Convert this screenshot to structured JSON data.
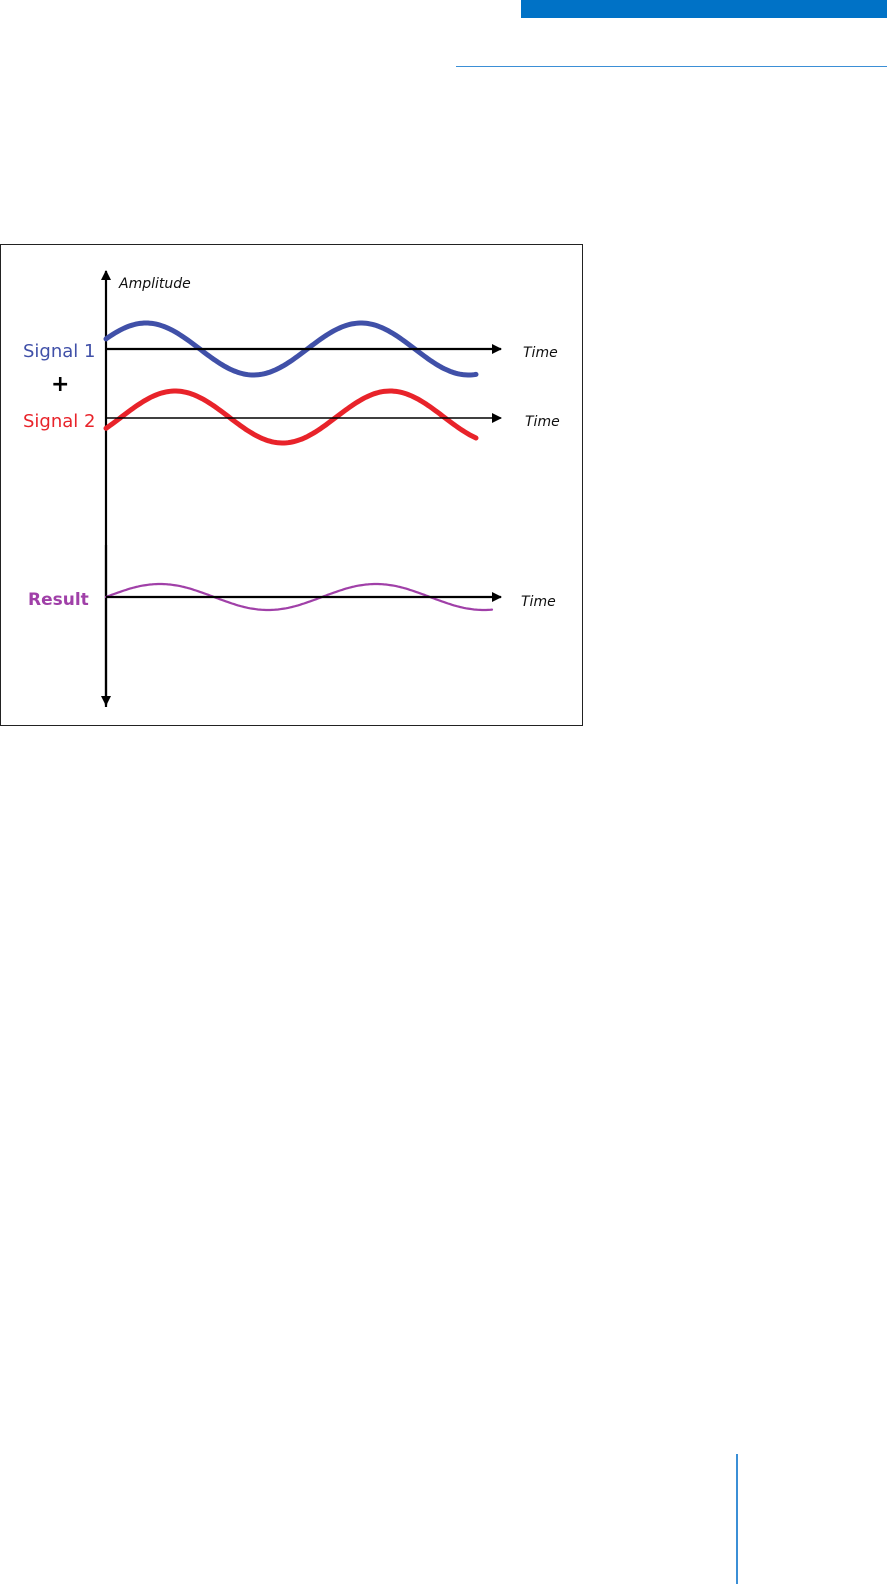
{
  "colors": {
    "header_band": "#0072c6",
    "header_rule": "#3b8fd6",
    "footer_rule": "#3b8fd6",
    "axis": "#000000",
    "signal1": "#4050a8",
    "signal2": "#e8232a",
    "result": "#a040a8"
  },
  "diagram": {
    "y_axis_label": "Amplitude",
    "plus_sign": "+",
    "rows": [
      {
        "label": "Signal 1",
        "axis_label": "Time",
        "color_key": "signal1"
      },
      {
        "label": "Signal 2",
        "axis_label": "Time",
        "color_key": "signal2"
      },
      {
        "label": "Result",
        "axis_label": "Time",
        "color_key": "result"
      }
    ]
  }
}
